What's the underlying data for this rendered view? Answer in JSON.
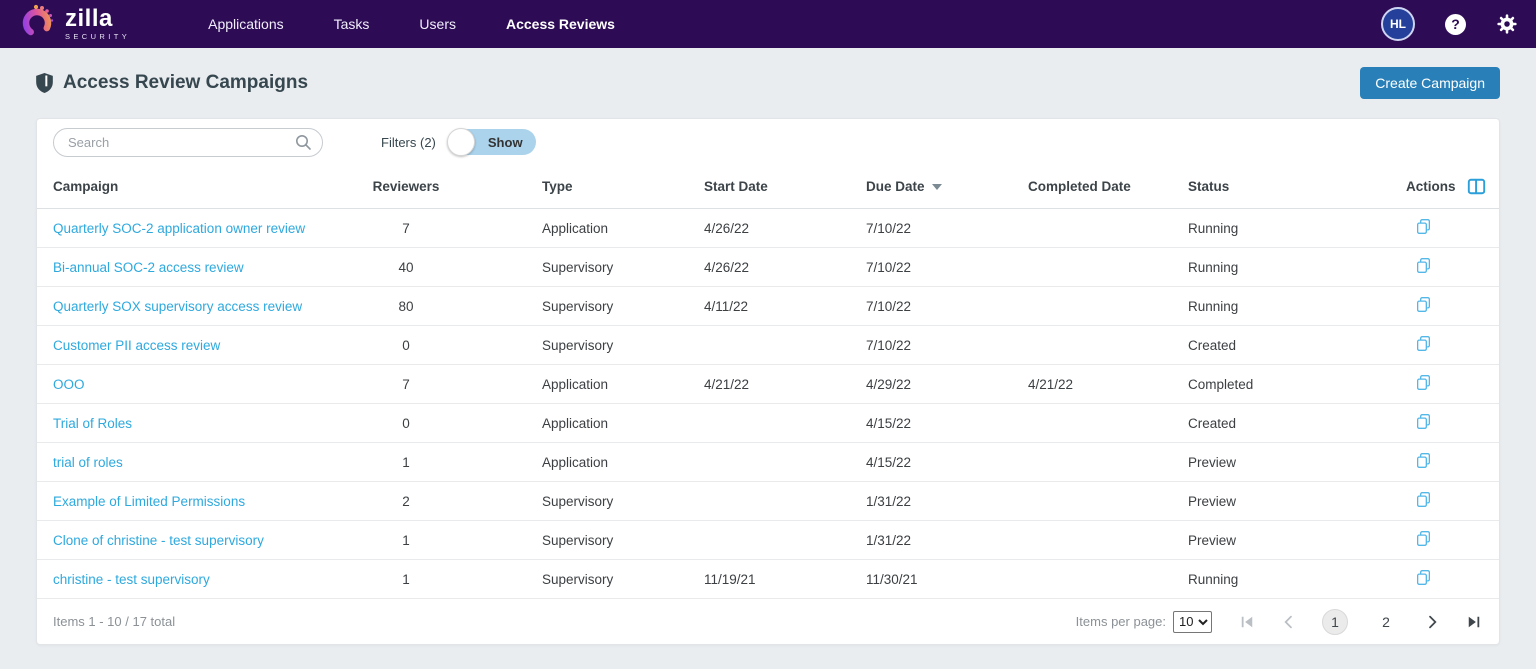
{
  "navbar": {
    "brand": {
      "name": "zilla",
      "sub": "SECURITY"
    },
    "items": [
      {
        "label": "Applications",
        "active": false
      },
      {
        "label": "Tasks",
        "active": false
      },
      {
        "label": "Users",
        "active": false
      },
      {
        "label": "Access Reviews",
        "active": true
      }
    ],
    "avatar_initials": "HL",
    "help_glyph": "?"
  },
  "page": {
    "title": "Access Review Campaigns",
    "create_button_label": "Create Campaign"
  },
  "toolbar": {
    "search_placeholder": "Search",
    "search_value": "",
    "filters_label": "Filters (2)",
    "toggle_label": "Show"
  },
  "table": {
    "columns": [
      "Campaign",
      "Reviewers",
      "Type",
      "Start Date",
      "Due Date",
      "Completed Date",
      "Status",
      "Actions"
    ],
    "sorted_column": "Due Date",
    "sort_direction": "desc",
    "rows": [
      {
        "campaign": "Quarterly SOC-2 application owner review",
        "reviewers": "7",
        "type": "Application",
        "start_date": "4/26/22",
        "due_date": "7/10/22",
        "completed_date": "",
        "status": "Running"
      },
      {
        "campaign": "Bi-annual SOC-2 access review",
        "reviewers": "40",
        "type": "Supervisory",
        "start_date": "4/26/22",
        "due_date": "7/10/22",
        "completed_date": "",
        "status": "Running"
      },
      {
        "campaign": "Quarterly SOX supervisory access review",
        "reviewers": "80",
        "type": "Supervisory",
        "start_date": "4/11/22",
        "due_date": "7/10/22",
        "completed_date": "",
        "status": "Running"
      },
      {
        "campaign": "Customer PII access review",
        "reviewers": "0",
        "type": "Supervisory",
        "start_date": "",
        "due_date": "7/10/22",
        "completed_date": "",
        "status": "Created"
      },
      {
        "campaign": "OOO",
        "reviewers": "7",
        "type": "Application",
        "start_date": "4/21/22",
        "due_date": "4/29/22",
        "completed_date": "4/21/22",
        "status": "Completed"
      },
      {
        "campaign": "Trial of Roles",
        "reviewers": "0",
        "type": "Application",
        "start_date": "",
        "due_date": "4/15/22",
        "completed_date": "",
        "status": "Created"
      },
      {
        "campaign": "trial of roles",
        "reviewers": "1",
        "type": "Application",
        "start_date": "",
        "due_date": "4/15/22",
        "completed_date": "",
        "status": "Preview"
      },
      {
        "campaign": "Example of Limited Permissions",
        "reviewers": "2",
        "type": "Supervisory",
        "start_date": "",
        "due_date": "1/31/22",
        "completed_date": "",
        "status": "Preview"
      },
      {
        "campaign": "Clone of christine - test supervisory",
        "reviewers": "1",
        "type": "Supervisory",
        "start_date": "",
        "due_date": "1/31/22",
        "completed_date": "",
        "status": "Preview"
      },
      {
        "campaign": "christine - test supervisory",
        "reviewers": "1",
        "type": "Supervisory",
        "start_date": "11/19/21",
        "due_date": "11/30/21",
        "completed_date": "",
        "status": "Running"
      }
    ]
  },
  "pagination": {
    "summary": "Items 1 - 10 / 17 total",
    "per_page_label": "Items per page:",
    "per_page_value": "10",
    "pages": [
      "1",
      "2"
    ],
    "current_page": "1"
  },
  "colors": {
    "navbar_bg": "#2d0b55",
    "page_bg": "#e9edf0",
    "link_blue": "#2ea9de",
    "button_blue": "#2980b9",
    "toggle_bg": "#abd3ec",
    "action_icon_blue": "#53b7e8",
    "columns_icon_blue": "#2b9fd9"
  }
}
